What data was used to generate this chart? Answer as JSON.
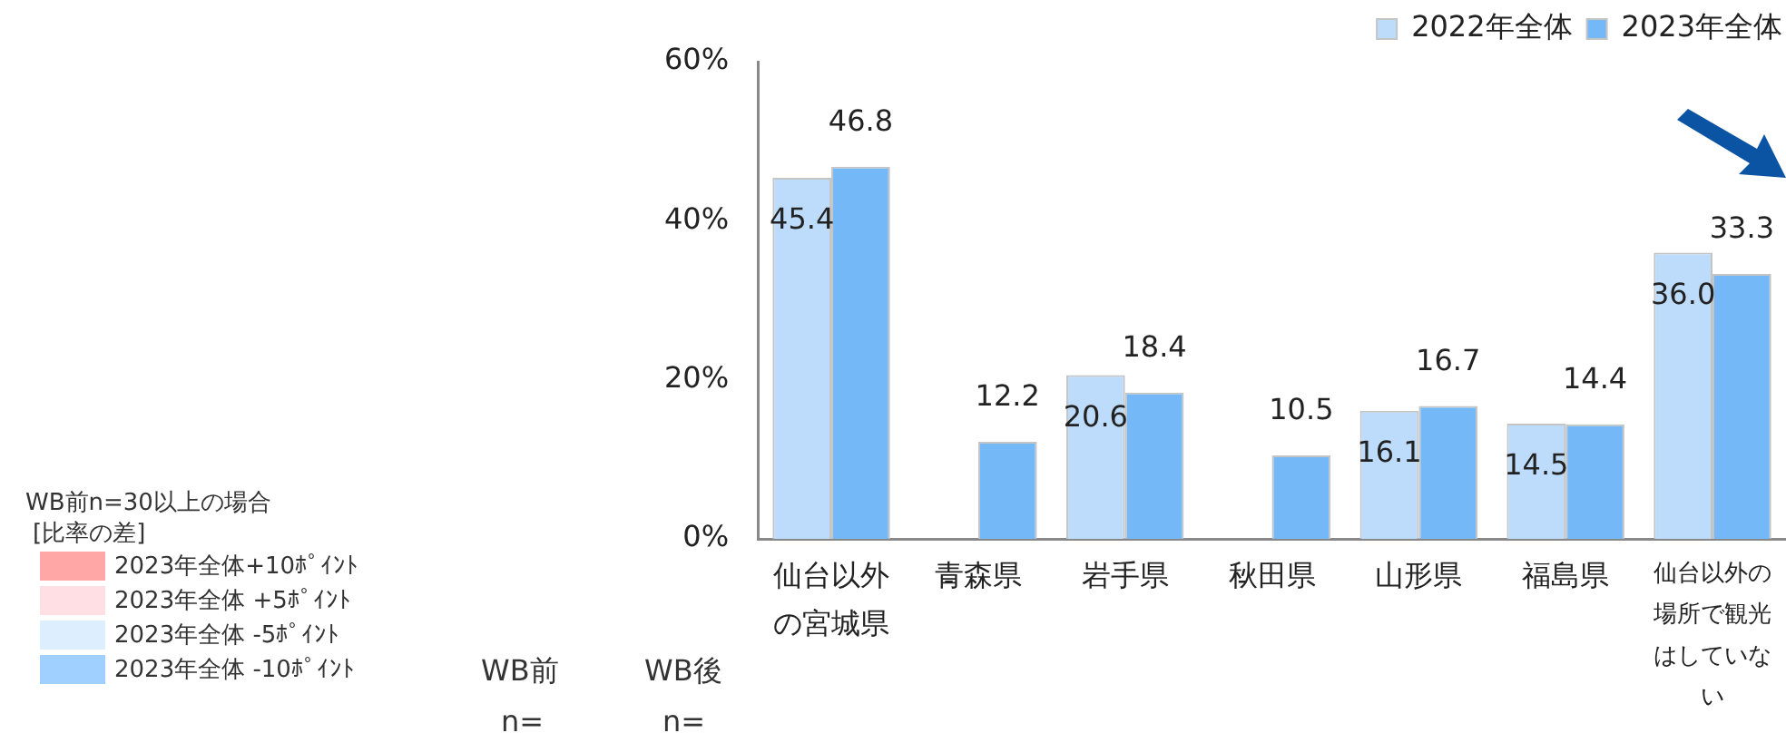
{
  "chart_data": {
    "type": "bar",
    "categories": [
      "仙台以外の宮城県",
      "青森県",
      "岩手県",
      "秋田県",
      "山形県",
      "福島県",
      "仙台以外の場所で観光はしていない"
    ],
    "series": [
      {
        "name": "2022年全体",
        "color": "#bddcfb",
        "values": [
          45.4,
          null,
          20.6,
          null,
          16.1,
          14.5,
          36.0
        ],
        "value_labels": [
          "45.4",
          "-",
          "20.6",
          "-",
          "16.1",
          "14.5",
          "36.0"
        ]
      },
      {
        "name": "2023年全体",
        "color": "#75b8f8",
        "values": [
          46.8,
          12.2,
          18.4,
          10.5,
          16.7,
          14.4,
          33.3
        ],
        "value_labels": [
          "46.8",
          "12.2",
          "18.4",
          "10.5",
          "16.7",
          "14.4",
          "33.3"
        ]
      }
    ],
    "ylim": [
      0,
      60
    ],
    "yticks": [
      {
        "value": 0,
        "label": "0%"
      },
      {
        "value": 20,
        "label": "20%"
      },
      {
        "value": 40,
        "label": "40%"
      },
      {
        "value": 60,
        "label": "60%"
      }
    ],
    "grid": false,
    "legend": "top right",
    "annotations": [
      "WB前n=30以上の場合",
      "[比率の差]",
      "2023年全体+10ﾎﾟｲﾝﾄ",
      "2023年全体 +5ﾎﾟｲﾝﾄ",
      "2023年全体 -5ﾎﾟｲﾝﾄ",
      "2023年全体 -10ﾎﾟｲﾝﾄ",
      "WB前",
      "WB後",
      "n=",
      "n="
    ]
  }
}
